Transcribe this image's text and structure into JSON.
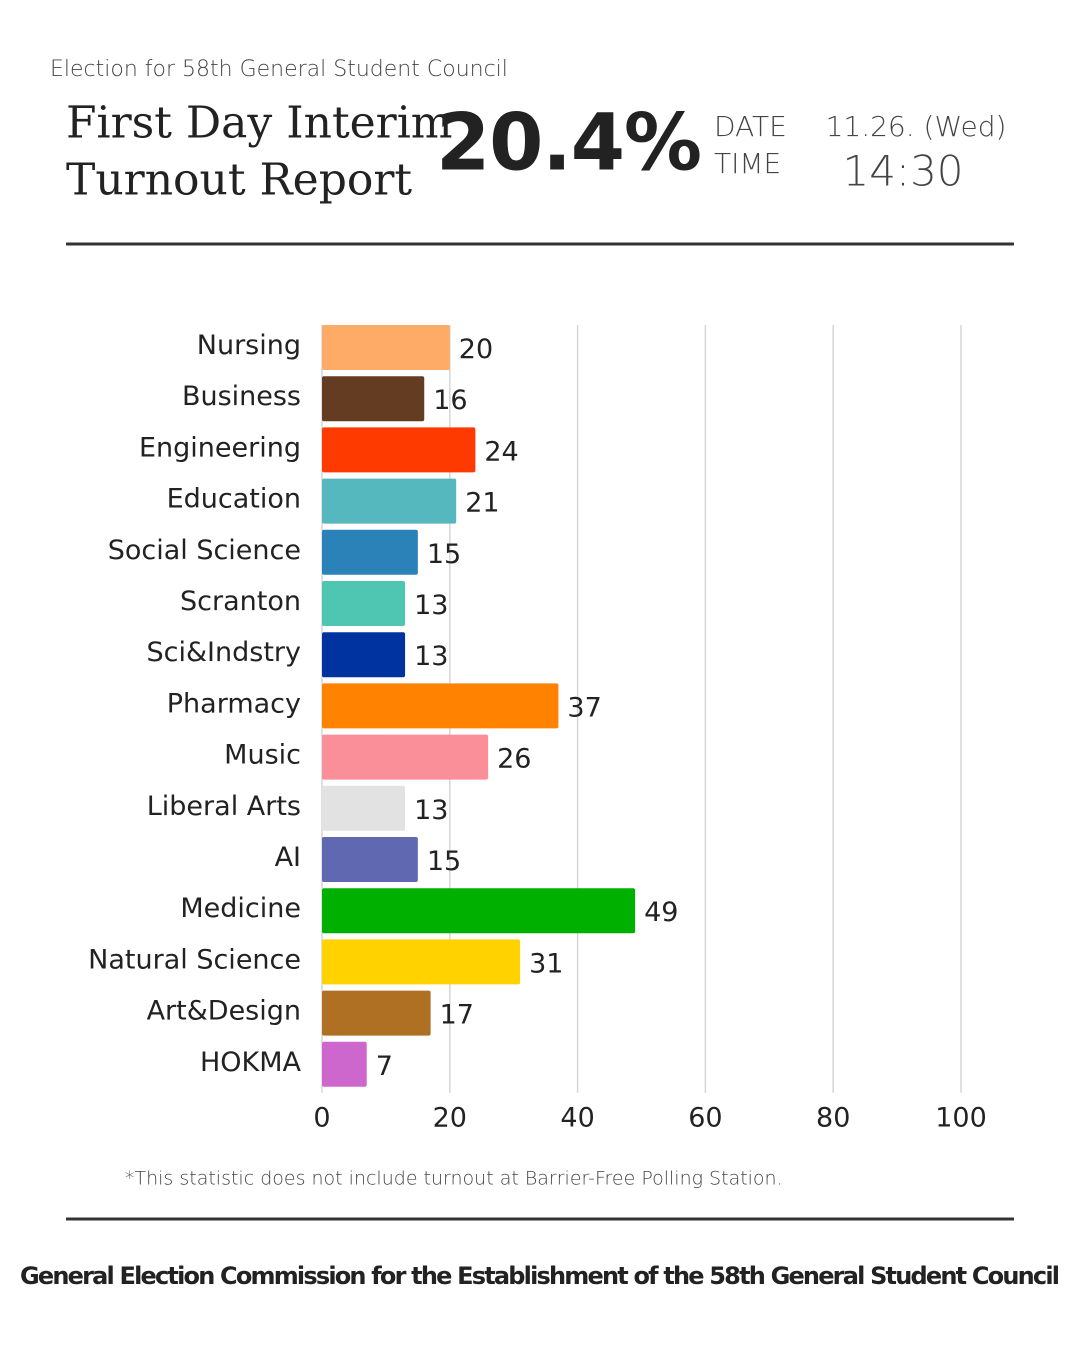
{
  "header": {
    "subtitle": "Election for 58th General Student Council",
    "title_line1": "First Day Interim",
    "title_line2": "Turnout Report",
    "turnout": "20.4%",
    "date_label": "DATE",
    "time_label": "TIME",
    "date": "11.26. (Wed)",
    "time": "14:30"
  },
  "chart_data": {
    "type": "hbar",
    "categories": [
      "Nursing",
      "Business",
      "Engineering",
      "Education",
      "Social Science",
      "Scranton",
      "Sci&Indstry",
      "Pharmacy",
      "Music",
      "Liberal Arts",
      "AI",
      "Medicine",
      "Natural Science",
      "Art&Design",
      "HOKMA"
    ],
    "values": [
      20,
      16,
      24,
      21,
      15,
      13,
      13,
      37,
      26,
      13,
      15,
      49,
      31,
      17,
      7
    ],
    "colors": [
      "#fdab66",
      "#633c22",
      "#ff3a00",
      "#55b8bf",
      "#2b82b8",
      "#4ec6b1",
      "#0033a0",
      "#ff8300",
      "#fa8f9a",
      "#e2e2e2",
      "#6068b2",
      "#00b000",
      "#ffd200",
      "#b07024",
      "#cd66cd"
    ],
    "xlim": [
      0,
      100
    ],
    "xticks": [
      0,
      20,
      40,
      60,
      80,
      100
    ],
    "grid": true
  },
  "footnote": "*This statistic does not include turnout at Barrier-Free Polling Station.",
  "footer": "General Election Commission for the Establishment of the 58th General Student Council"
}
